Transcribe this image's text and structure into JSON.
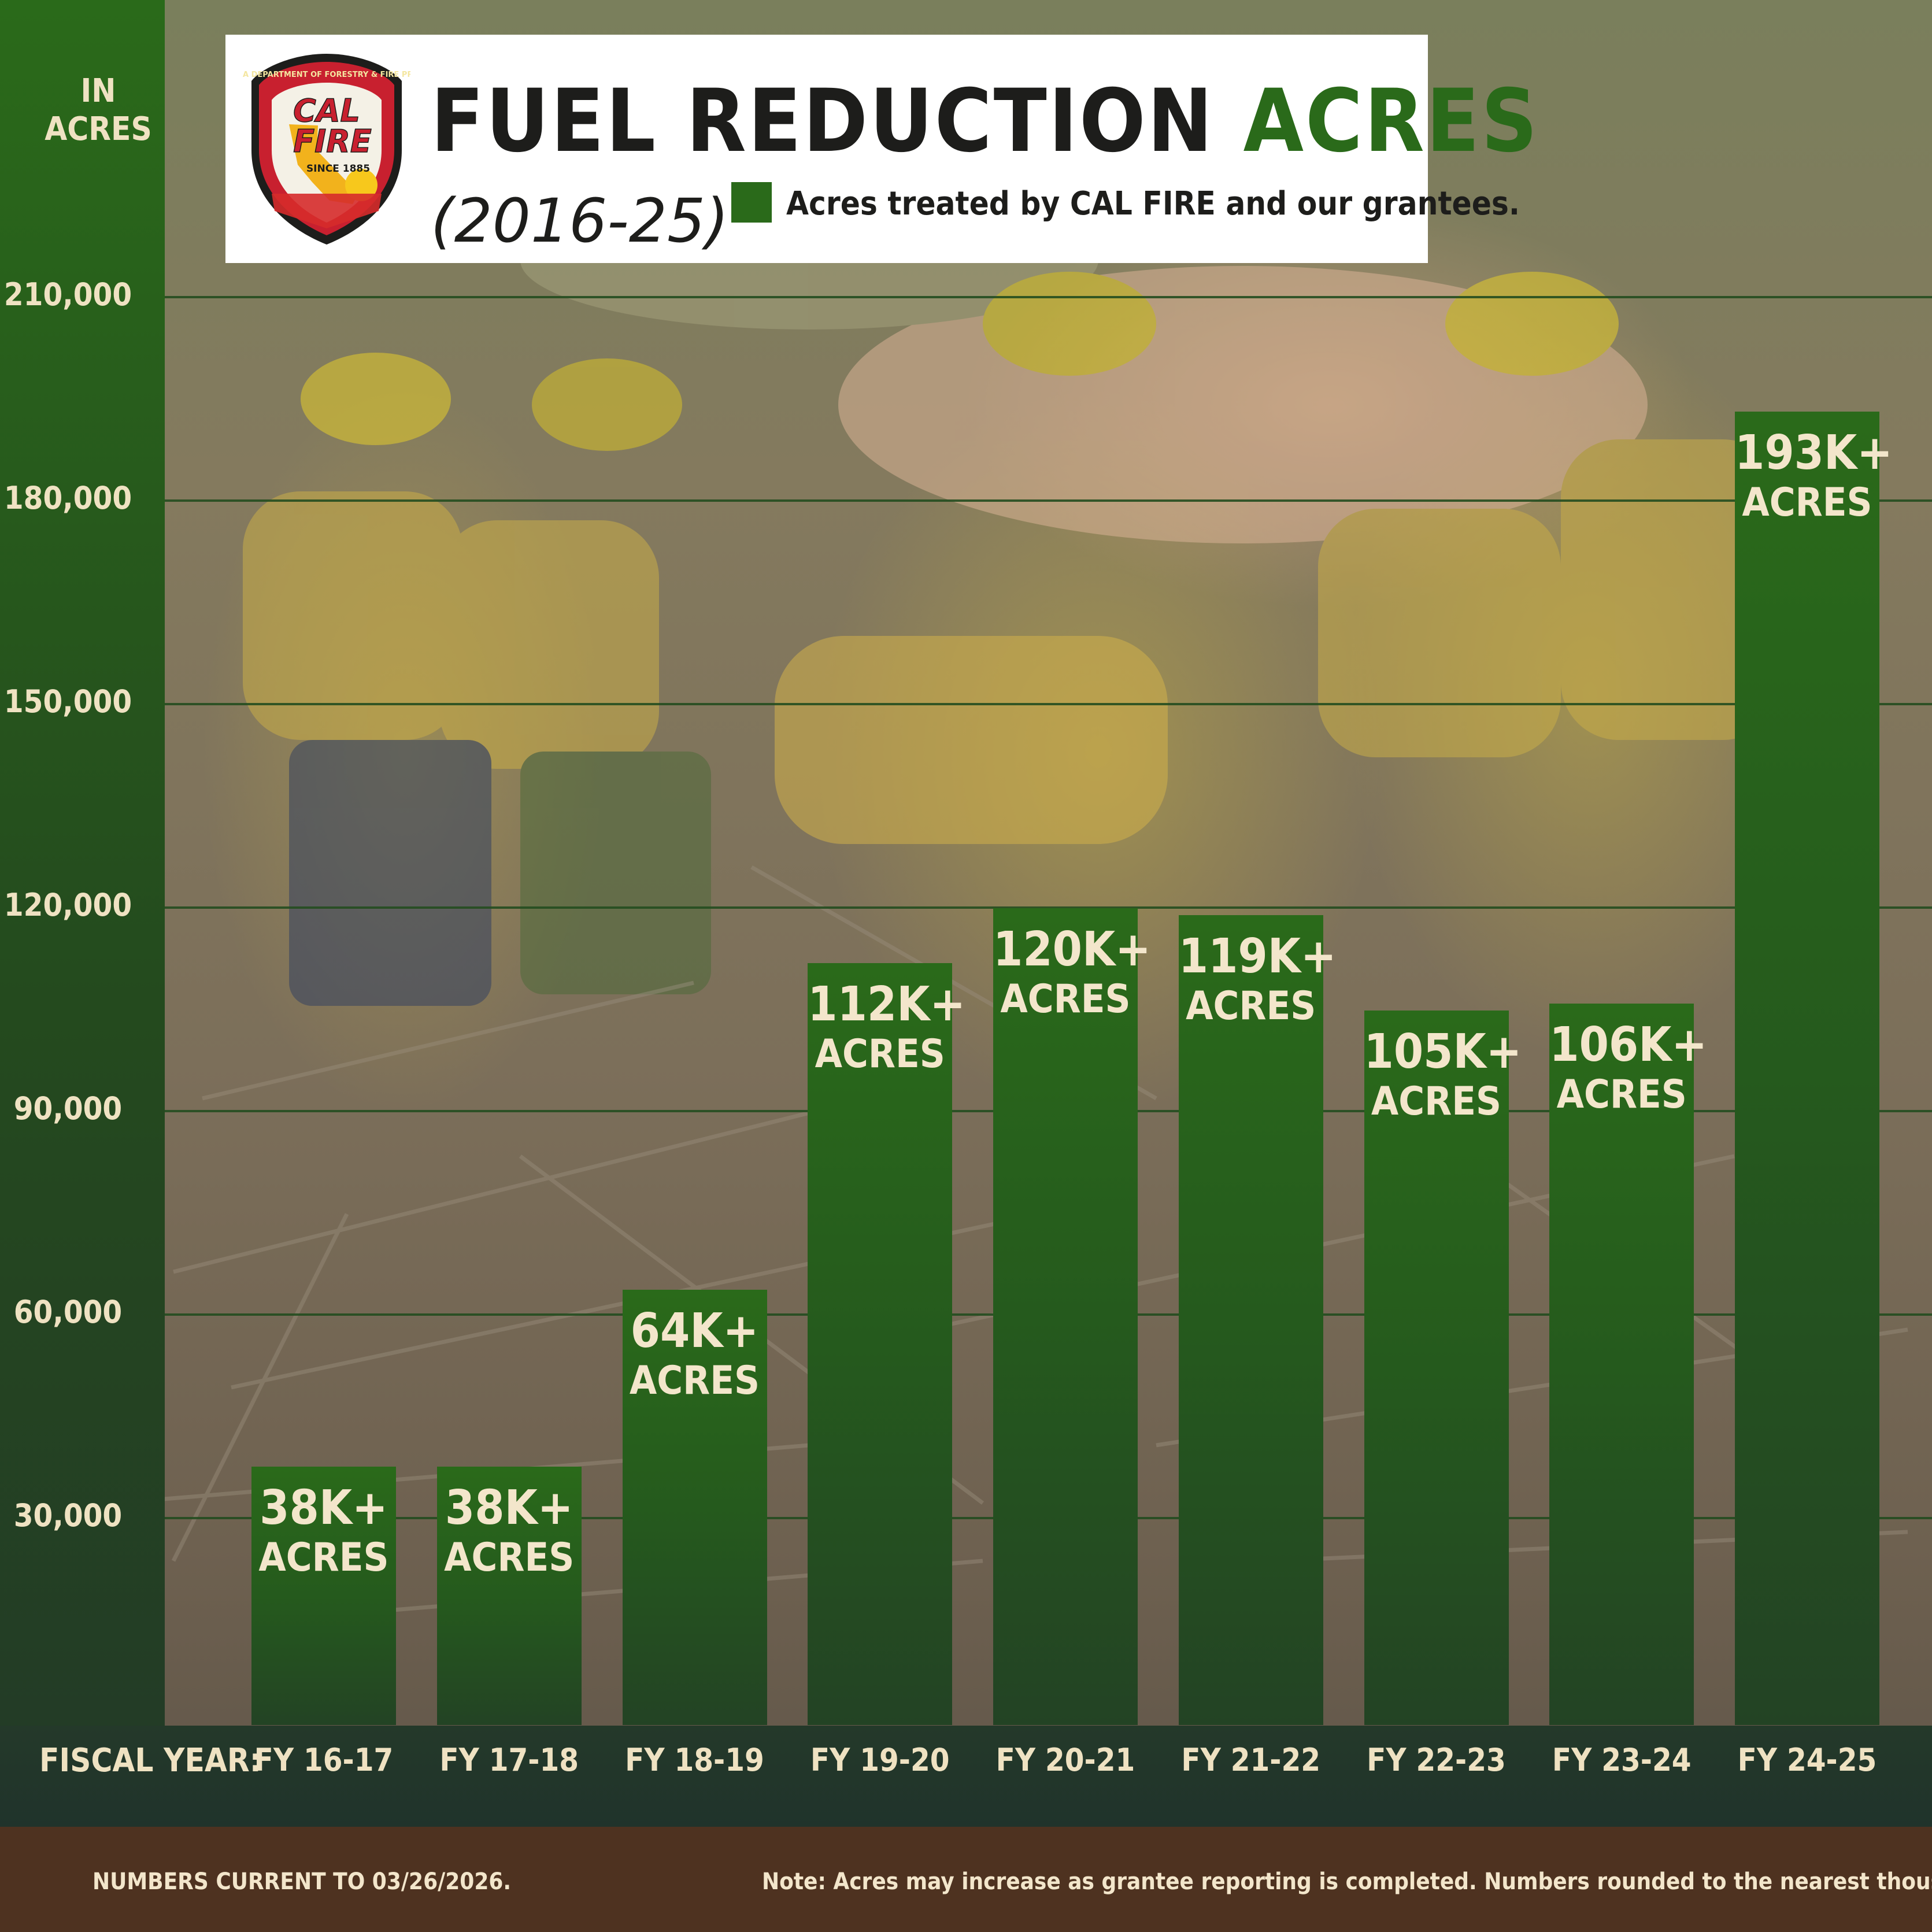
{
  "title": {
    "main": "FUEL REDUCTION",
    "accent": "ACRES",
    "subtitle": "(2016-25)"
  },
  "legend": {
    "label": "Acres treated by CAL FIRE and our grantees.",
    "color": "#2a6a1a"
  },
  "logo": {
    "arc_text": "CALIFORNIA DEPARTMENT OF FORESTRY & FIRE PROTECTION",
    "line1": "CAL",
    "line2": "FIRE",
    "since": "SINCE 1885"
  },
  "y_axis": {
    "unit_line1": "IN",
    "unit_line2": "ACRES",
    "ticks": [
      "210,000",
      "180,000",
      "150,000",
      "120,000",
      "90,000",
      "60,000",
      "30,000"
    ]
  },
  "x_axis": {
    "title": "FISCAL YEAR:"
  },
  "chart_data": {
    "type": "bar",
    "title": "FUEL REDUCTION ACRES",
    "subtitle": "(2016-25)",
    "xlabel": "FISCAL YEAR:",
    "ylabel": "IN ACRES",
    "categories": [
      "FY 16-17",
      "FY 17-18",
      "FY 18-19",
      "FY 19-20",
      "FY 20-21",
      "FY 21-22",
      "FY 22-23",
      "FY 23-24",
      "FY 24-25"
    ],
    "series": [
      {
        "name": "Acres treated by CAL FIRE and our grantees.",
        "values": [
          38000,
          38000,
          64000,
          112000,
          120000,
          119000,
          105000,
          106000,
          193000
        ]
      }
    ],
    "data_labels": [
      "38K+",
      "38K+",
      "64K+",
      "112K+",
      "120K+",
      "119K+",
      "105K+",
      "106K+",
      "193K+"
    ],
    "data_label_unit": "ACRES",
    "ylim": [
      0,
      210000
    ],
    "yticks": [
      30000,
      60000,
      90000,
      120000,
      150000,
      180000,
      210000
    ],
    "grid": true,
    "legend_position": "top"
  },
  "footer": {
    "left": "NUMBERS CURRENT TO 03/26/2026.",
    "right": "Note: Acres may increase as grantee reporting is completed. Numbers rounded to the nearest thousand."
  }
}
